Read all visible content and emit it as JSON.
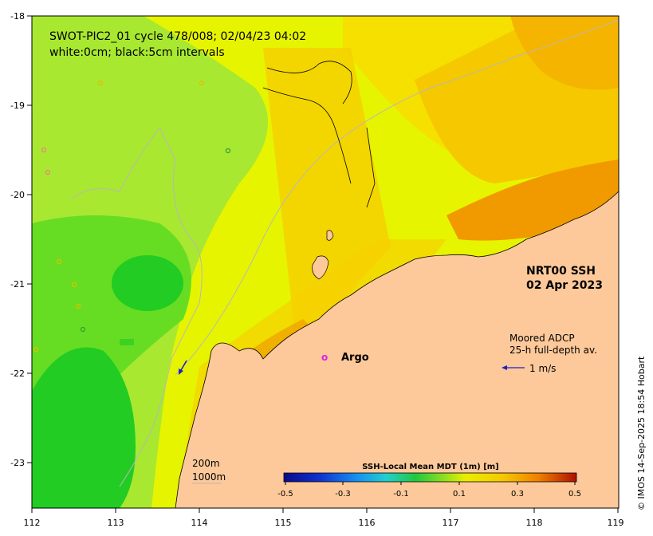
{
  "title_line1": "SWOT-PIC2_01 cycle 478/008; 02/04/23 04:02",
  "title_line2": "white:0cm; black:5cm intervals",
  "product_line1": "NRT00 SSH",
  "product_line2": "02 Apr 2023",
  "adcp_line1": "Moored ADCP",
  "adcp_line2": "25-h full-depth av.",
  "adcp_scale": "1 m/s",
  "argo_label": "Argo",
  "argo_marker": "o",
  "depth_200": "200m",
  "depth_1000": "1000m",
  "credit": "© IMOS 14-Sep-2025 18:54 Hobart",
  "colorbar": {
    "title": "SSH-Local Mean MDT (1m) [m]",
    "ticks": [
      "-0.5",
      "-0.3",
      "-0.1",
      "0.1",
      "0.3",
      "0.5"
    ]
  },
  "axes": {
    "x_ticks": [
      "112",
      "113",
      "114",
      "115",
      "116",
      "117",
      "118",
      "119"
    ],
    "y_ticks": [
      "-18",
      "-19",
      "-20",
      "-21",
      "-22",
      "-23"
    ]
  },
  "colors": {
    "land": "#fdc99a",
    "yellow_green": "#e6f400",
    "light_green": "#a8e830",
    "mid_green": "#66dd22",
    "green": "#22cc22",
    "yellow": "#f5e800",
    "gold": "#f5c800",
    "orange": "#f09a00",
    "argo": "#e020e0",
    "arrow": "#2020c0"
  }
}
